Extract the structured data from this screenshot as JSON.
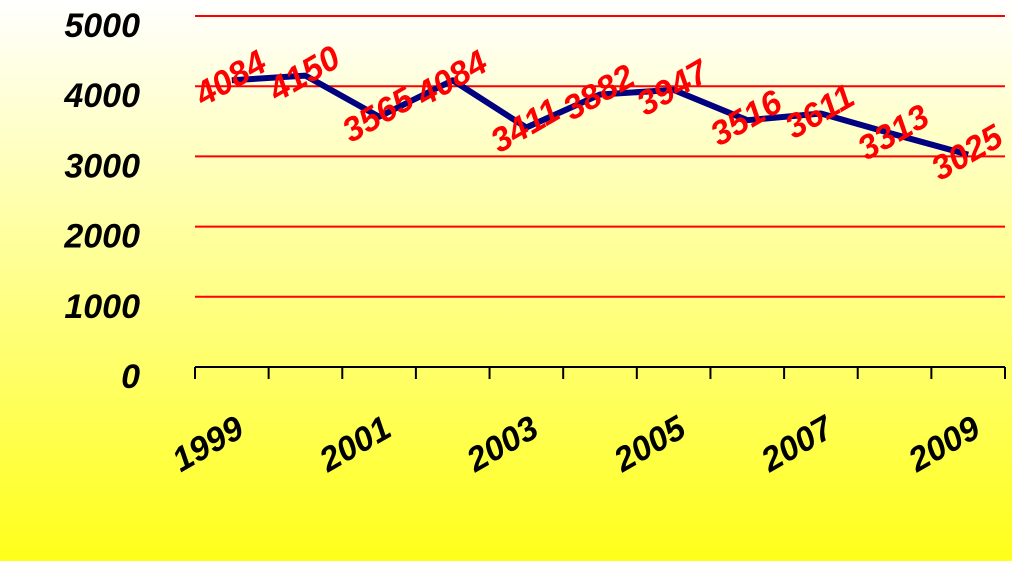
{
  "chart_data": {
    "type": "line",
    "categories": [
      "1999",
      null,
      "2001",
      null,
      "2003",
      null,
      "2005",
      null,
      "2007",
      null,
      "2009"
    ],
    "values": [
      4084,
      4150,
      3565,
      4084,
      3411,
      3882,
      3947,
      3516,
      3611,
      3313,
      3025
    ],
    "color": "#000080",
    "label_color": "#ff0000",
    "grid_color": "#ff0000",
    "ylim": [
      0,
      5000
    ],
    "yticks": [
      0,
      1000,
      2000,
      3000,
      4000,
      5000
    ],
    "grid": true
  }
}
